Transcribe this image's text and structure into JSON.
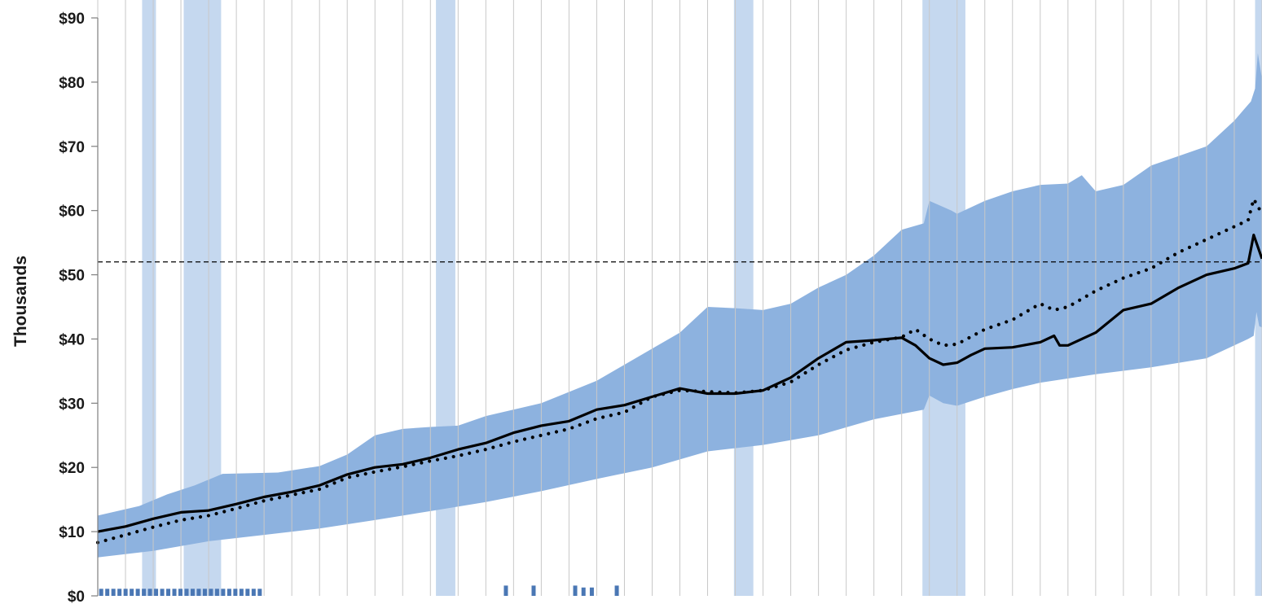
{
  "chart_data": {
    "type": "area",
    "ylabel": "Thousands",
    "xlabel": "",
    "ylim": [
      0,
      90
    ],
    "y_ticks": [
      "$0",
      "$10",
      "$20",
      "$30",
      "$40",
      "$50",
      "$60",
      "$70",
      "$80",
      "$90"
    ],
    "y_tick_values": [
      0,
      10,
      20,
      30,
      40,
      50,
      60,
      70,
      80,
      90
    ],
    "x_period_index_range": [
      0,
      42
    ],
    "x_tick_count": 42,
    "grid": "vertical gridlines at every x tick",
    "reference_line": {
      "value": 52,
      "style": "dashed"
    },
    "colors": {
      "band": "#8db2df",
      "shaded_period": "#c5d8ef",
      "grid": "#c8c8c8",
      "line": "#000000",
      "small_bars": "#4a77b4"
    },
    "shaded_periods": [
      [
        1.6,
        2.1
      ],
      [
        3.1,
        4.45
      ],
      [
        12.2,
        12.9
      ],
      [
        22.95,
        23.65
      ],
      [
        29.75,
        31.3
      ],
      [
        41.75,
        42.0
      ]
    ],
    "band_upper": {
      "x": [
        0,
        1.5,
        2.5,
        3.5,
        4.5,
        6.5,
        8,
        9,
        10,
        11,
        12,
        13,
        14,
        16,
        18,
        19,
        20,
        21,
        22,
        23,
        24,
        25,
        26,
        27,
        28,
        29,
        29.8,
        30,
        30.8,
        31,
        32,
        33,
        34,
        35,
        35.5,
        36,
        37,
        38,
        39,
        40,
        41,
        41.6,
        41.75,
        41.85,
        42
      ],
      "y": [
        12.5,
        14,
        15.8,
        17.2,
        19,
        19.2,
        20.2,
        22,
        25,
        26,
        26.3,
        26.5,
        28,
        30,
        33.5,
        36,
        38.5,
        41,
        45,
        44.8,
        44.5,
        45.5,
        48,
        50,
        53,
        57,
        58,
        61.5,
        60,
        59.5,
        61.5,
        63,
        64,
        64.2,
        65.5,
        63,
        64,
        67,
        68.5,
        70,
        74,
        77,
        79,
        84.5,
        80.5
      ]
    },
    "band_lower": {
      "x": [
        0,
        2,
        4,
        6,
        8,
        10,
        12,
        14,
        16,
        18,
        20,
        22,
        24,
        26,
        28,
        29.8,
        30,
        30.5,
        31,
        32,
        33,
        34,
        36,
        38,
        40,
        41.5,
        41.7,
        41.8,
        41.9,
        42
      ],
      "y": [
        6,
        7,
        8.5,
        9.5,
        10.5,
        11.8,
        13.2,
        14.6,
        16.3,
        18.2,
        20,
        22.5,
        23.5,
        25,
        27.5,
        29,
        31.2,
        30,
        29.6,
        31,
        32.2,
        33.2,
        34.5,
        35.6,
        37,
        40,
        40.5,
        44.2,
        42,
        41.8
      ]
    },
    "series": [
      {
        "style": "solid",
        "x": [
          0,
          1,
          2,
          3,
          4,
          5,
          6,
          7,
          8,
          9,
          10,
          11,
          12,
          13,
          14,
          15,
          16,
          17,
          18,
          19,
          20,
          21,
          22,
          23,
          24,
          25,
          26,
          27,
          28,
          29,
          29.5,
          30,
          30.5,
          31,
          31.5,
          32,
          33,
          34,
          34.5,
          34.7,
          35,
          36,
          37,
          38,
          39,
          40,
          41,
          41.5,
          41.7,
          42
        ],
        "y": [
          10,
          10.8,
          12,
          13,
          13.3,
          14.3,
          15.4,
          16.2,
          17.2,
          18.9,
          20.0,
          20.5,
          21.5,
          22.8,
          23.8,
          25.4,
          26.5,
          27.2,
          29.0,
          29.7,
          31.0,
          32.3,
          31.5,
          31.5,
          32.0,
          34.0,
          37.0,
          39.5,
          39.8,
          40.2,
          39.0,
          37.0,
          36.0,
          36.3,
          37.5,
          38.5,
          38.7,
          39.5,
          40.5,
          39.0,
          39.0,
          41.0,
          44.5,
          45.5,
          48.0,
          50.0,
          51.0,
          51.8,
          56.2,
          52.5
        ]
      },
      {
        "style": "dotted",
        "x": [
          0,
          1,
          2,
          3,
          4,
          5,
          6,
          7,
          8,
          9,
          10,
          11,
          12,
          13,
          14,
          15,
          16,
          17,
          18,
          19,
          20,
          21,
          22,
          23,
          24,
          25,
          26,
          27,
          28,
          29,
          29.5,
          30,
          30.5,
          31,
          32,
          33,
          34,
          34.5,
          35,
          36,
          37,
          38,
          39,
          40,
          41,
          41.5,
          41.7,
          42
        ],
        "y": [
          8.3,
          9.5,
          10.7,
          11.8,
          12.5,
          13.6,
          14.8,
          15.7,
          16.6,
          18.4,
          19.3,
          20.1,
          21.0,
          21.8,
          22.8,
          24.0,
          25.0,
          26.0,
          27.6,
          28.6,
          31.0,
          32.0,
          31.8,
          31.6,
          32.0,
          33.3,
          36.0,
          38.3,
          39.5,
          40.3,
          41.5,
          40.0,
          39.0,
          39.2,
          41.5,
          43.0,
          45.5,
          44.5,
          45.0,
          47.5,
          49.5,
          51.0,
          53.5,
          55.5,
          57.5,
          58.5,
          61.8,
          59.5
        ]
      }
    ],
    "bottom_markers": {
      "x": [
        0.05,
        0.27,
        0.49,
        0.71,
        0.93,
        1.15,
        1.37,
        1.59,
        1.81,
        2.03,
        2.25,
        2.47,
        2.69,
        2.91,
        3.13,
        3.35,
        3.57,
        3.79,
        4.01,
        4.23,
        4.45,
        4.67,
        4.89,
        5.11,
        5.33,
        5.55,
        5.77,
        14.65,
        15.65,
        17.15,
        17.45,
        17.75,
        18.65
      ],
      "height": [
        1.1,
        1.1,
        1.1,
        1.1,
        1.1,
        1.1,
        1.1,
        1.1,
        1.1,
        1.1,
        1.1,
        1.1,
        1.1,
        1.1,
        1.1,
        1.1,
        1.1,
        1.1,
        1.1,
        1.1,
        1.1,
        1.1,
        1.1,
        1.1,
        1.1,
        1.1,
        1.1,
        1.6,
        1.6,
        1.6,
        1.3,
        1.3,
        1.6
      ]
    }
  }
}
